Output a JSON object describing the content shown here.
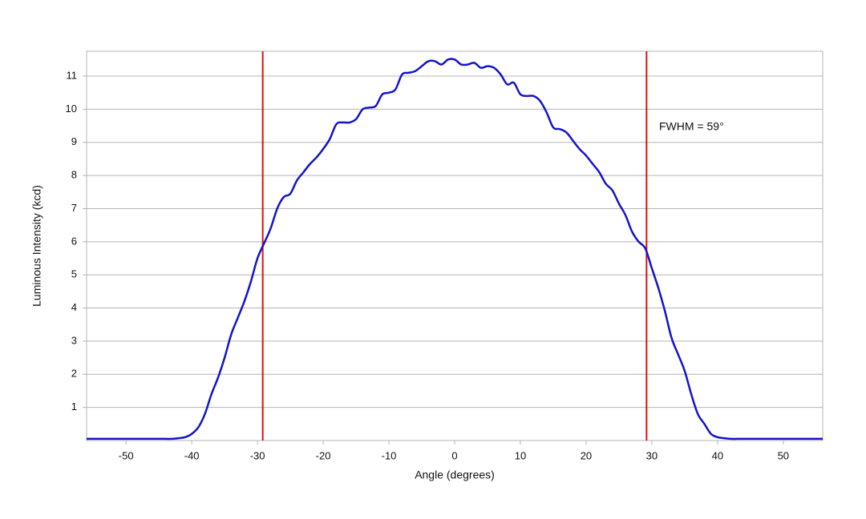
{
  "chart_data": {
    "type": "line",
    "x_label": "Angle (degrees)",
    "y_label": "Luminous Intensity (kcd)",
    "xlim": [
      -56,
      56
    ],
    "ylim": [
      0,
      11.75
    ],
    "xticks": [
      -50,
      -40,
      -30,
      -20,
      -10,
      0,
      10,
      20,
      30,
      40,
      50
    ],
    "yticks": [
      1,
      2,
      3,
      4,
      5,
      6,
      7,
      8,
      9,
      10,
      11
    ],
    "grid": true,
    "x": [
      -56,
      -55,
      -54,
      -53,
      -52,
      -51,
      -50,
      -49,
      -48,
      -47,
      -46,
      -45,
      -44,
      -43,
      -42,
      -41,
      -40,
      -39,
      -38,
      -37,
      -36,
      -35,
      -34,
      -33,
      -32,
      -31,
      -30,
      -29,
      -28,
      -27,
      -26,
      -25,
      -24,
      -23,
      -22,
      -21,
      -20,
      -19,
      -18,
      -17,
      -16,
      -15,
      -14,
      -13,
      -12,
      -11,
      -10,
      -9,
      -8,
      -7,
      -6,
      -5,
      -4,
      -3,
      -2,
      -1,
      0,
      1,
      2,
      3,
      4,
      5,
      6,
      7,
      8,
      9,
      10,
      11,
      12,
      13,
      14,
      15,
      16,
      17,
      18,
      19,
      20,
      21,
      22,
      23,
      24,
      25,
      26,
      27,
      28,
      29,
      30,
      31,
      32,
      33,
      34,
      35,
      36,
      37,
      38,
      39,
      40,
      41,
      42,
      43,
      44,
      45,
      46,
      47,
      48,
      49,
      50,
      51,
      52,
      53,
      54,
      55,
      56
    ],
    "series": [
      {
        "color": "#1414c8",
        "values": [
          0.05,
          0.05,
          0.05,
          0.05,
          0.05,
          0.05,
          0.05,
          0.05,
          0.05,
          0.05,
          0.05,
          0.05,
          0.05,
          0.05,
          0.07,
          0.1,
          0.2,
          0.4,
          0.8,
          1.4,
          1.9,
          2.5,
          3.2,
          3.7,
          4.2,
          4.8,
          5.5,
          5.95,
          6.4,
          7.0,
          7.35,
          7.45,
          7.85,
          8.1,
          8.35,
          8.55,
          8.8,
          9.1,
          9.55,
          9.6,
          9.6,
          9.7,
          10.0,
          10.05,
          10.1,
          10.45,
          10.5,
          10.6,
          11.05,
          11.1,
          11.15,
          11.3,
          11.45,
          11.45,
          11.35,
          11.5,
          11.5,
          11.35,
          11.35,
          11.4,
          11.25,
          11.3,
          11.25,
          11.05,
          10.75,
          10.8,
          10.45,
          10.4,
          10.4,
          10.25,
          9.9,
          9.45,
          9.4,
          9.3,
          9.05,
          8.8,
          8.6,
          8.35,
          8.1,
          7.75,
          7.55,
          7.15,
          6.8,
          6.3,
          6.0,
          5.8,
          5.2,
          4.6,
          3.9,
          3.1,
          2.6,
          2.1,
          1.4,
          0.8,
          0.5,
          0.2,
          0.1,
          0.07,
          0.05,
          0.05,
          0.05,
          0.05,
          0.05,
          0.05,
          0.05,
          0.05,
          0.05,
          0.05,
          0.05,
          0.05,
          0.05,
          0.05,
          0.05
        ]
      }
    ],
    "vlines": [
      -29.2,
      29.2
    ],
    "vline_color": "#e01010",
    "annotation": "FWHM = 59°"
  }
}
